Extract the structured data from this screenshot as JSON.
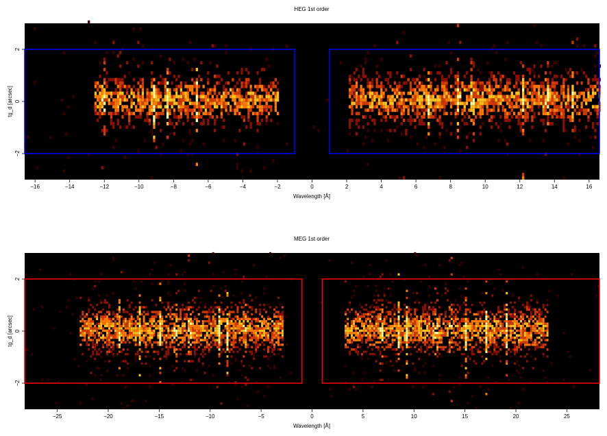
{
  "chart_data": [
    {
      "type": "heatmap",
      "title": "HEG 1st order",
      "xlabel": "Wavelength [Å]",
      "ylabel": "tg_d [arcsec]",
      "xlim": [
        -16.6,
        16.6
      ],
      "ylim": [
        -3.0,
        3.0
      ],
      "xticks": [
        -16,
        -14,
        -12,
        -10,
        -8,
        -6,
        -4,
        -2,
        0,
        2,
        4,
        6,
        8,
        10,
        12,
        14,
        16
      ],
      "xtick_labels": [
        "−16",
        "−14",
        "−12",
        "−10",
        "−8",
        "−6",
        "−4",
        "−2",
        "0",
        "2",
        "4",
        "6",
        "8",
        "10",
        "12",
        "14",
        "16"
      ],
      "yticks": [
        -2,
        0,
        2
      ],
      "ytick_labels": [
        "−2",
        "0",
        "2"
      ],
      "background": "#000000",
      "colormap": [
        "#3a0000",
        "#8b1000",
        "#d23a00",
        "#ff7a00",
        "#ffc21a",
        "#ffffa0"
      ],
      "extraction_regions": [
        {
          "x": [
            -16.6,
            -1.0
          ],
          "y": [
            -2.0,
            2.0
          ],
          "color": "#0000ff"
        },
        {
          "x": [
            1.0,
            16.6
          ],
          "y": [
            -2.0,
            2.0
          ],
          "color": "#0000ff"
        }
      ],
      "emission_lines": [
        -12.1,
        -9.2,
        -8.4,
        -6.7,
        6.7,
        8.4,
        9.2,
        12.1,
        13.5,
        15.0
      ],
      "source_extent": [
        [
          -12.6,
          -2.0
        ],
        [
          2.0,
          16.6
        ]
      ]
    },
    {
      "type": "heatmap",
      "title": "MEG 1st order",
      "xlabel": "Wavelength [Å]",
      "ylabel": "tg_d [arcsec]",
      "xlim": [
        -28.2,
        28.2
      ],
      "ylim": [
        -3.0,
        3.0
      ],
      "xticks": [
        -25,
        -20,
        -15,
        -10,
        -5,
        0,
        5,
        10,
        15,
        20,
        25
      ],
      "xtick_labels": [
        "−25",
        "−20",
        "−15",
        "−10",
        "−5",
        "0",
        "5",
        "10",
        "15",
        "20",
        "25"
      ],
      "yticks": [
        -2,
        0,
        2
      ],
      "ytick_labels": [
        "−2",
        "0",
        "2"
      ],
      "background": "#000000",
      "colormap": [
        "#3a0000",
        "#8b1000",
        "#d23a00",
        "#ff7a00",
        "#ffc21a",
        "#ffffa0"
      ],
      "extraction_regions": [
        {
          "x": [
            -28.2,
            -1.0
          ],
          "y": [
            -2.0,
            2.0
          ],
          "color": "#ff0000"
        },
        {
          "x": [
            1.0,
            28.2
          ],
          "y": [
            -2.0,
            2.0
          ],
          "color": "#ff0000"
        }
      ],
      "emission_lines": [
        -18.97,
        -17.0,
        -15.0,
        -13.5,
        -12.1,
        -9.2,
        -8.4,
        -6.7,
        6.7,
        8.4,
        9.2,
        12.1,
        13.5,
        15.0,
        17.0,
        18.97
      ],
      "source_extent": [
        [
          -23.0,
          -3.0
        ],
        [
          3.0,
          23.0
        ]
      ]
    }
  ]
}
